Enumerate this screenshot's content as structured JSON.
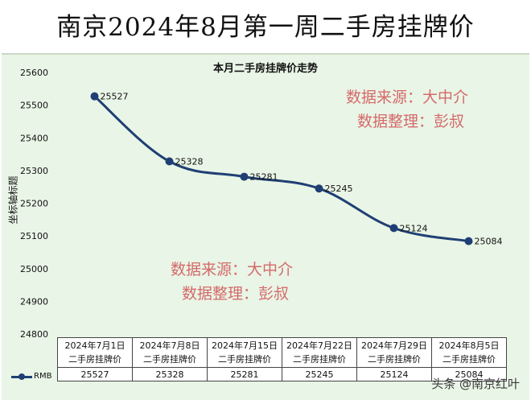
{
  "title": "南京2024年8月第一周二手房挂牌价",
  "chart_data": {
    "type": "line",
    "title": "本月二手房挂牌价走势",
    "ylabel": "坐标轴标题",
    "xlabel": "",
    "ylim": [
      24800,
      25600
    ],
    "yticks": [
      24800,
      24900,
      25000,
      25100,
      25200,
      25300,
      25400,
      25500,
      25600
    ],
    "categories": [
      "2024年7月1日 二手房挂牌价",
      "2024年7月8日 二手房挂牌价",
      "2024年7月15日 二手房挂牌价",
      "2024年7月22日 二手房挂牌价",
      "2024年7月29日 二手房挂牌价",
      "2024年8月5日 二手房挂牌价"
    ],
    "series": [
      {
        "name": "RMB",
        "values": [
          25527,
          25328,
          25281,
          25245,
          25124,
          25084
        ],
        "color": "#1f3f74"
      }
    ],
    "grid": false,
    "legend": "bottom-left (data table)"
  },
  "table": {
    "headers": [
      [
        "2024年7月1日",
        "二手房挂牌价"
      ],
      [
        "2024年7月8日",
        "二手房挂牌价"
      ],
      [
        "2024年7月15日",
        "二手房挂牌价"
      ],
      [
        "2024年7月22日",
        "二手房挂牌价"
      ],
      [
        "2024年7月29日",
        "二手房挂牌价"
      ],
      [
        "2024年8月5日",
        "二手房挂牌价"
      ]
    ],
    "legend_label": "RMB",
    "values": [
      "25527",
      "25328",
      "25281",
      "25245",
      "25124",
      "25084"
    ]
  },
  "annotations": {
    "source_line": "数据来源：大中介",
    "editor_line": "数据整理：彭叔"
  },
  "watermark": "头条 @南京红叶",
  "colors": {
    "panel_bg": "#e9f5e6",
    "line": "#1f3f74",
    "annotation": "#d46a6a"
  }
}
